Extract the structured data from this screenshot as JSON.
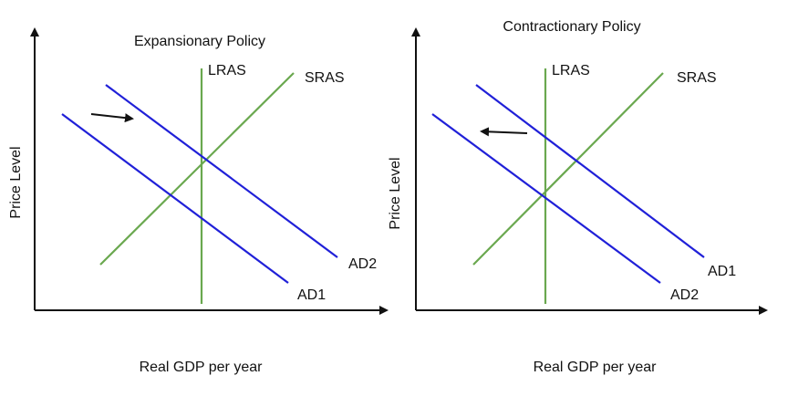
{
  "panels": [
    {
      "title": "Expansionary Policy",
      "y_axis_label": "Price Level",
      "x_axis_label": "Real GDP per year",
      "labels": {
        "lras": "LRAS",
        "sras": "SRAS",
        "upper_ad": "AD2",
        "lower_ad": "AD1"
      }
    },
    {
      "title": "Contractionary Policy",
      "y_axis_label": "Price Level",
      "x_axis_label": "Real GDP per year",
      "labels": {
        "lras": "LRAS",
        "sras": "SRAS",
        "upper_ad": "AD1",
        "lower_ad": "AD2"
      }
    }
  ]
}
